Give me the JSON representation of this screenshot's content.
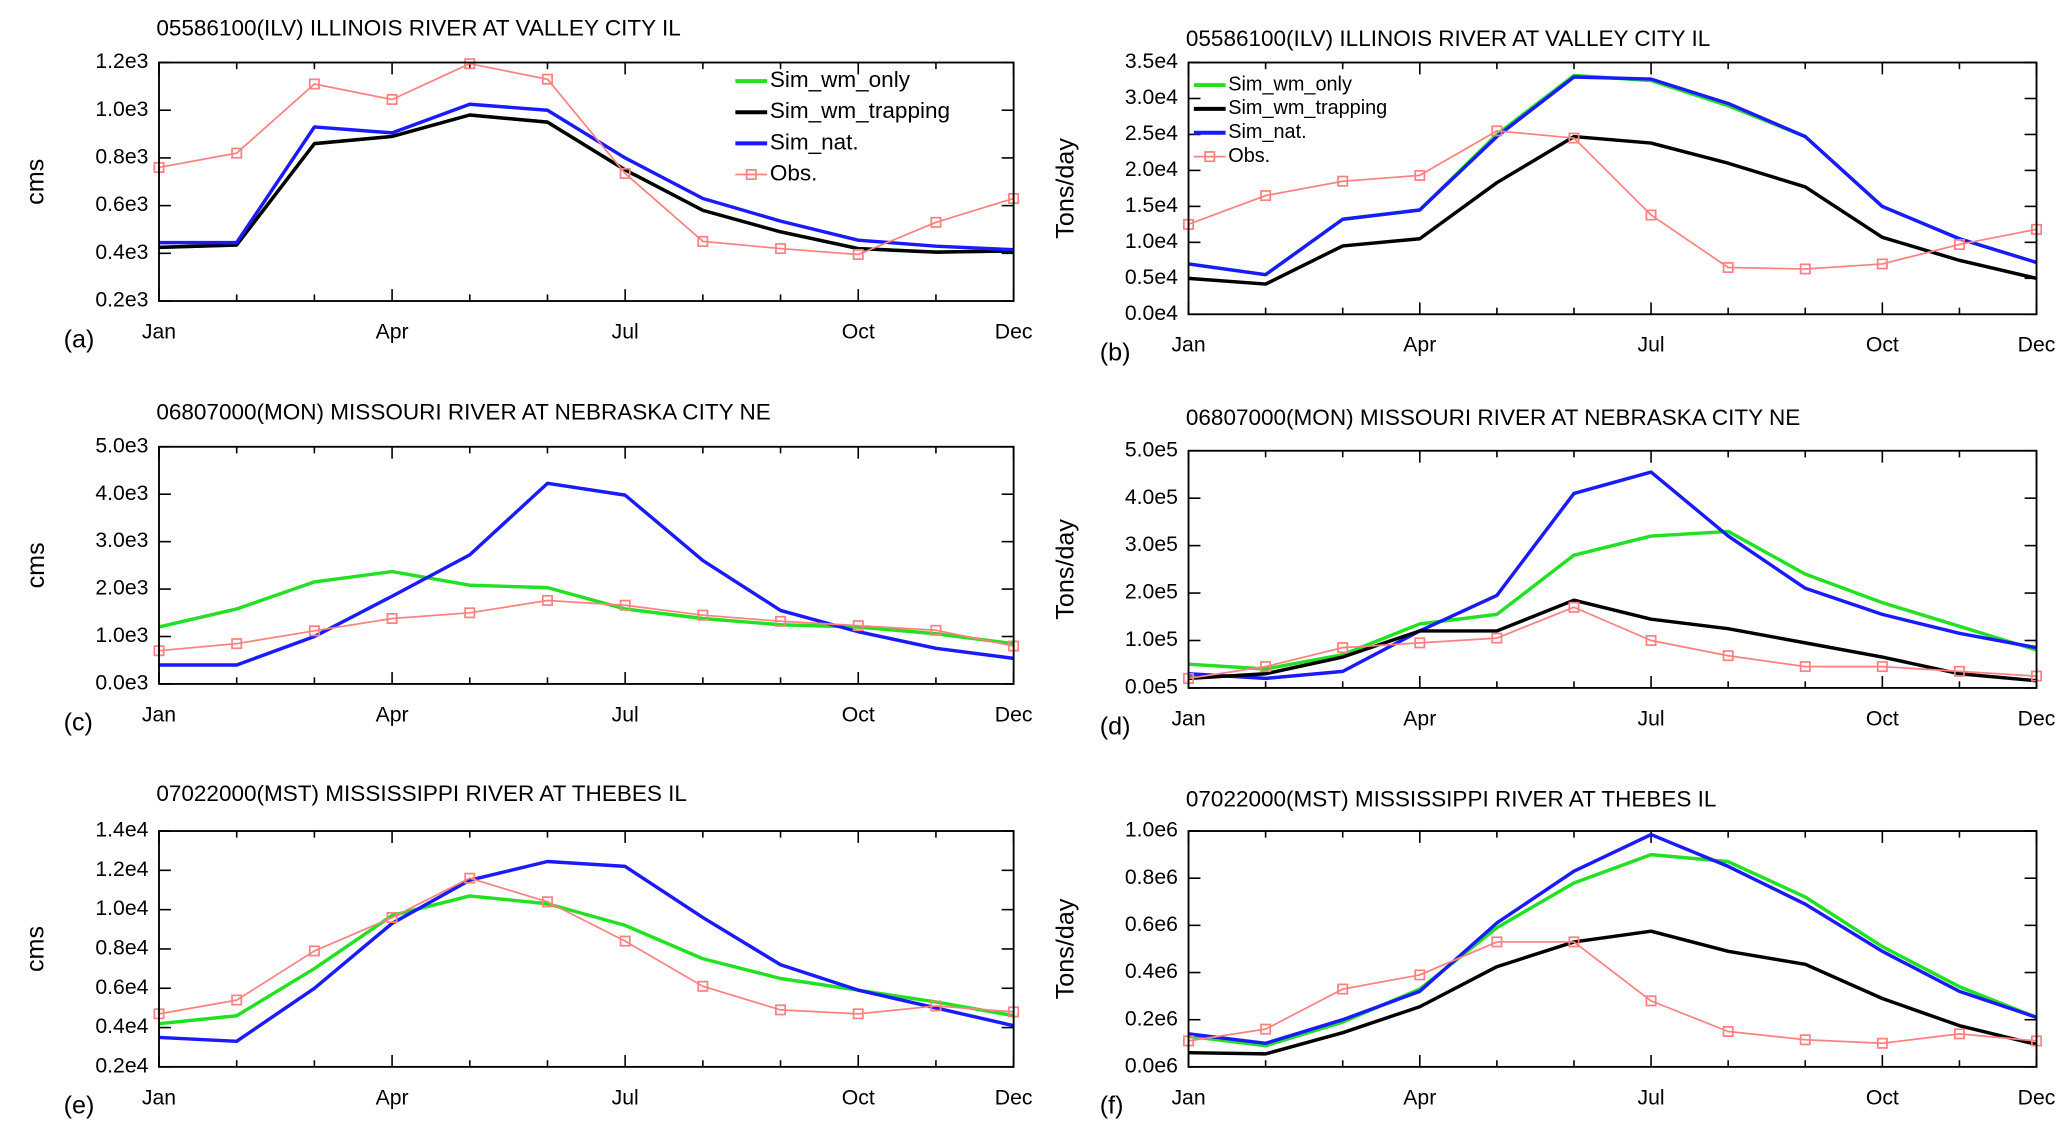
{
  "chart_data": [
    {
      "type": "line",
      "title": "05586100(ILV) ILLINOIS RIVER AT VALLEY CITY IL",
      "panel_label": "(a)",
      "y_label": "cms",
      "categories": [
        "Jan",
        null,
        null,
        "Apr",
        null,
        null,
        "Jul",
        null,
        null,
        "Oct",
        null,
        "Dec"
      ],
      "ylim": [
        200,
        1200
      ],
      "yticks": [
        {
          "value": 200,
          "label": "0.2e3"
        },
        {
          "value": 400,
          "label": "0.4e3"
        },
        {
          "value": 600,
          "label": "0.6e3"
        },
        {
          "value": 800,
          "label": "0.8e3"
        },
        {
          "value": 1000,
          "label": "1.0e3"
        },
        {
          "value": 1200,
          "label": "1.2e3"
        }
      ],
      "legend": "upper right",
      "series": [
        {
          "name": "Sim_wm_only",
          "color": "#22e022",
          "values": [
            425,
            435,
            860,
            890,
            980,
            950,
            750,
            580,
            490,
            420,
            405,
            410
          ]
        },
        {
          "name": "Sim_wm_trapping",
          "color": "#000000",
          "values": [
            425,
            435,
            860,
            890,
            980,
            950,
            750,
            580,
            490,
            420,
            405,
            410
          ]
        },
        {
          "name": "Sim_nat.",
          "color": "#1a1aff",
          "values": [
            445,
            445,
            930,
            905,
            1025,
            1000,
            800,
            630,
            535,
            455,
            430,
            415
          ]
        },
        {
          "name": "Obs.",
          "color": "#ff8080",
          "marker": "square",
          "values": [
            760,
            820,
            1110,
            1045,
            1195,
            1130,
            735,
            450,
            420,
            395,
            530,
            630
          ]
        }
      ]
    },
    {
      "type": "line",
      "title": "05586100(ILV) ILLINOIS RIVER AT VALLEY CITY IL",
      "panel_label": "(b)",
      "y_label": "Tons/day",
      "categories": [
        "Jan",
        null,
        null,
        "Apr",
        null,
        null,
        "Jul",
        null,
        null,
        "Oct",
        null,
        "Dec"
      ],
      "ylim": [
        0,
        35000
      ],
      "yticks": [
        {
          "value": 0,
          "label": "0.0e4"
        },
        {
          "value": 5000,
          "label": "0.5e4"
        },
        {
          "value": 10000,
          "label": "1.0e4"
        },
        {
          "value": 15000,
          "label": "1.5e4"
        },
        {
          "value": 20000,
          "label": "2.0e4"
        },
        {
          "value": 25000,
          "label": "2.5e4"
        },
        {
          "value": 30000,
          "label": "3.0e4"
        },
        {
          "value": 35000,
          "label": "3.5e4"
        }
      ],
      "legend": "upper left",
      "series": [
        {
          "name": "Sim_wm_only",
          "color": "#22e022",
          "values": [
            7000,
            5500,
            13200,
            14500,
            25000,
            33200,
            32500,
            29000,
            24700,
            15000,
            10500,
            7200
          ]
        },
        {
          "name": "Sim_wm_trapping",
          "color": "#000000",
          "values": [
            5000,
            4200,
            9500,
            10500,
            18300,
            24700,
            23800,
            21000,
            17700,
            10700,
            7500,
            5000
          ]
        },
        {
          "name": "Sim_nat.",
          "color": "#1a1aff",
          "values": [
            7000,
            5500,
            13200,
            14500,
            24700,
            33000,
            32700,
            29300,
            24700,
            15000,
            10500,
            7200
          ]
        },
        {
          "name": "Obs.",
          "color": "#ff8080",
          "marker": "square",
          "values": [
            12500,
            16500,
            18500,
            19300,
            25500,
            24500,
            13800,
            6500,
            6300,
            7000,
            9700,
            11800
          ]
        }
      ]
    },
    {
      "type": "line",
      "title": "06807000(MON) MISSOURI RIVER AT NEBRASKA CITY NE",
      "panel_label": "(c)",
      "y_label": "cms",
      "categories": [
        "Jan",
        null,
        null,
        "Apr",
        null,
        null,
        "Jul",
        null,
        null,
        "Oct",
        null,
        "Dec"
      ],
      "ylim": [
        0,
        5000
      ],
      "yticks": [
        {
          "value": 0,
          "label": "0.0e3"
        },
        {
          "value": 1000,
          "label": "1.0e3"
        },
        {
          "value": 2000,
          "label": "2.0e3"
        },
        {
          "value": 3000,
          "label": "3.0e3"
        },
        {
          "value": 4000,
          "label": "4.0e3"
        },
        {
          "value": 5000,
          "label": "5.0e3"
        }
      ],
      "series": [
        {
          "color": "#22e022",
          "values": [
            1200,
            1580,
            2150,
            2370,
            2080,
            2030,
            1580,
            1380,
            1250,
            1200,
            1060,
            850
          ]
        },
        {
          "color": "#1a1aff",
          "values": [
            400,
            400,
            1000,
            1850,
            2720,
            4230,
            3980,
            2600,
            1550,
            1100,
            750,
            540
          ]
        },
        {
          "color": "#ff8080",
          "marker": "square",
          "values": [
            700,
            850,
            1120,
            1380,
            1500,
            1760,
            1660,
            1450,
            1320,
            1230,
            1130,
            800
          ]
        }
      ]
    },
    {
      "type": "line",
      "title": "06807000(MON) MISSOURI RIVER AT NEBRASKA CITY NE",
      "panel_label": "(d)",
      "y_label": "Tons/day",
      "categories": [
        "Jan",
        null,
        null,
        "Apr",
        null,
        null,
        "Jul",
        null,
        null,
        "Oct",
        null,
        "Dec"
      ],
      "ylim": [
        0,
        500000
      ],
      "yticks": [
        {
          "value": 0,
          "label": "0.0e5"
        },
        {
          "value": 100000,
          "label": "1.0e5"
        },
        {
          "value": 200000,
          "label": "2.0e5"
        },
        {
          "value": 300000,
          "label": "3.0e5"
        },
        {
          "value": 400000,
          "label": "4.0e5"
        },
        {
          "value": 500000,
          "label": "5.0e5"
        }
      ],
      "series": [
        {
          "color": "#22e022",
          "values": [
            50000,
            40000,
            70000,
            135000,
            155000,
            280000,
            320000,
            330000,
            240000,
            180000,
            130000,
            80000
          ]
        },
        {
          "color": "#1a1aff",
          "values": [
            30000,
            20000,
            35000,
            120000,
            195000,
            410000,
            455000,
            320000,
            210000,
            155000,
            115000,
            85000
          ]
        },
        {
          "color": "#000000",
          "values": [
            20000,
            30000,
            65000,
            120000,
            120000,
            185000,
            145000,
            125000,
            95000,
            65000,
            30000,
            15000
          ]
        },
        {
          "color": "#ff8080",
          "marker": "square",
          "values": [
            20000,
            45000,
            85000,
            95000,
            105000,
            170000,
            100000,
            68000,
            45000,
            45000,
            35000,
            25000
          ]
        }
      ]
    },
    {
      "type": "line",
      "title": "07022000(MST) MISSISSIPPI RIVER AT THEBES IL",
      "panel_label": "(e)",
      "y_label": "cms",
      "categories": [
        "Jan",
        null,
        null,
        "Apr",
        null,
        null,
        "Jul",
        null,
        null,
        "Oct",
        null,
        "Dec"
      ],
      "ylim": [
        2000,
        14000
      ],
      "yticks": [
        {
          "value": 2000,
          "label": "0.2e4"
        },
        {
          "value": 4000,
          "label": "0.4e4"
        },
        {
          "value": 6000,
          "label": "0.6e4"
        },
        {
          "value": 8000,
          "label": "0.8e4"
        },
        {
          "value": 10000,
          "label": "1.0e4"
        },
        {
          "value": 12000,
          "label": "1.2e4"
        },
        {
          "value": 14000,
          "label": "1.4e4"
        }
      ],
      "series": [
        {
          "color": "#22e022",
          "values": [
            4200,
            4600,
            7000,
            9700,
            10700,
            10300,
            9200,
            7500,
            6500,
            5900,
            5300,
            4600
          ]
        },
        {
          "color": "#1a1aff",
          "values": [
            3500,
            3300,
            6000,
            9300,
            11500,
            12450,
            12200,
            9600,
            7200,
            5900,
            5000,
            4100
          ]
        },
        {
          "color": "#ff8080",
          "marker": "square",
          "values": [
            4700,
            5400,
            7900,
            9600,
            11600,
            10400,
            8400,
            6100,
            4900,
            4700,
            5100,
            4800
          ]
        }
      ]
    },
    {
      "type": "line",
      "title": "07022000(MST) MISSISSIPPI RIVER AT THEBES IL",
      "panel_label": "(f)",
      "y_label": "Tons/day",
      "categories": [
        "Jan",
        null,
        null,
        "Apr",
        null,
        null,
        "Jul",
        null,
        null,
        "Oct",
        null,
        "Dec"
      ],
      "ylim": [
        0,
        1000000
      ],
      "yticks": [
        {
          "value": 0,
          "label": "0.0e6"
        },
        {
          "value": 200000,
          "label": "0.2e6"
        },
        {
          "value": 400000,
          "label": "0.4e6"
        },
        {
          "value": 600000,
          "label": "0.6e6"
        },
        {
          "value": 800000,
          "label": "0.8e6"
        },
        {
          "value": 1000000,
          "label": "1.0e6"
        }
      ],
      "series": [
        {
          "color": "#22e022",
          "values": [
            130000,
            90000,
            190000,
            330000,
            590000,
            780000,
            900000,
            870000,
            720000,
            510000,
            340000,
            210000
          ]
        },
        {
          "color": "#1a1aff",
          "values": [
            140000,
            100000,
            200000,
            320000,
            610000,
            830000,
            985000,
            850000,
            690000,
            490000,
            320000,
            210000
          ]
        },
        {
          "color": "#000000",
          "values": [
            60000,
            55000,
            145000,
            255000,
            425000,
            530000,
            575000,
            490000,
            435000,
            290000,
            175000,
            95000
          ]
        },
        {
          "color": "#ff8080",
          "marker": "square",
          "values": [
            110000,
            160000,
            330000,
            390000,
            530000,
            530000,
            280000,
            150000,
            115000,
            100000,
            140000,
            110000
          ]
        }
      ]
    }
  ]
}
